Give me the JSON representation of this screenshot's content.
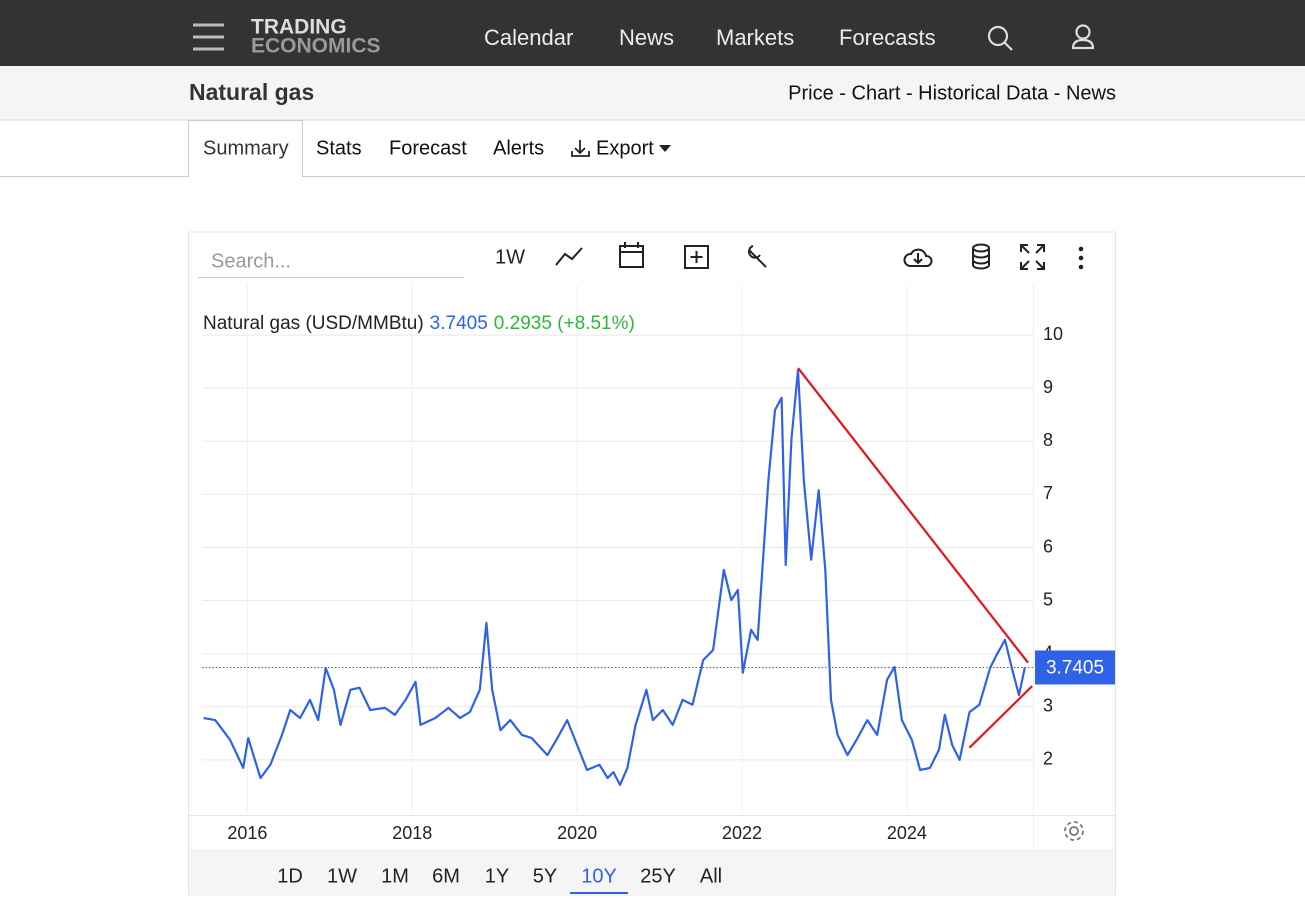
{
  "header": {
    "logo": [
      "TRADING",
      "ECONOMICS"
    ],
    "nav": [
      "Calendar",
      "News",
      "Markets",
      "Forecasts"
    ]
  },
  "subheader": {
    "title": "Natural gas",
    "links": "Price - Chart - Historical Data - News"
  },
  "tabs": [
    "Summary",
    "Stats",
    "Forecast",
    "Alerts",
    "Export"
  ],
  "toolbar": {
    "search_placeholder": "Search...",
    "interval": "1W"
  },
  "chart_data": {
    "type": "line",
    "series": [
      {
        "name": "Natural gas (USD/MMBtu)",
        "color": "#2f62e8",
        "change": "0.2935 (+8.51%)",
        "x": [
          2015.47,
          2015.61,
          2015.79,
          2015.95,
          2016.01,
          2016.16,
          2016.28,
          2016.42,
          2016.52,
          2016.64,
          2016.76,
          2016.86,
          2016.95,
          2017.05,
          2017.13,
          2017.25,
          2017.36,
          2017.49,
          2017.67,
          2017.79,
          2017.92,
          2018.04,
          2018.1,
          2018.28,
          2018.44,
          2018.58,
          2018.7,
          2018.82,
          2018.9,
          2018.97,
          2019.07,
          2019.19,
          2019.33,
          2019.45,
          2019.64,
          2019.75,
          2019.88,
          2020.0,
          2020.12,
          2020.27,
          2020.37,
          2020.44,
          2020.52,
          2020.61,
          2020.71,
          2020.84,
          2020.92,
          2021.04,
          2021.16,
          2021.28,
          2021.4,
          2021.53,
          2021.65,
          2021.78,
          2021.87,
          2021.95,
          2022.01,
          2022.11,
          2022.19,
          2022.32,
          2022.4,
          2022.48,
          2022.53,
          2022.6,
          2022.68,
          2022.75,
          2022.84,
          2022.93,
          2023.01,
          2023.08,
          2023.16,
          2023.28,
          2023.39,
          2023.52,
          2023.64,
          2023.76,
          2023.85,
          2023.94,
          2024.06,
          2024.16,
          2024.28,
          2024.39,
          2024.46,
          2024.55,
          2024.64,
          2024.76,
          2024.88,
          2025.01,
          2025.09,
          2025.19,
          2025.28,
          2025.36,
          2025.43
        ],
        "values": [
          2.79,
          2.75,
          2.38,
          1.85,
          2.41,
          1.66,
          1.91,
          2.47,
          2.94,
          2.79,
          3.13,
          2.75,
          3.73,
          3.32,
          2.66,
          3.32,
          3.36,
          2.94,
          2.98,
          2.85,
          3.13,
          3.47,
          2.66,
          2.79,
          2.98,
          2.79,
          2.9,
          3.32,
          4.58,
          3.32,
          2.56,
          2.75,
          2.47,
          2.41,
          2.09,
          2.38,
          2.75,
          2.28,
          1.81,
          1.91,
          1.66,
          1.77,
          1.53,
          1.85,
          2.66,
          3.32,
          2.75,
          2.94,
          2.66,
          3.13,
          3.04,
          3.88,
          4.07,
          5.58,
          5.01,
          5.2,
          3.64,
          4.45,
          4.26,
          7.27,
          8.59,
          8.82,
          5.67,
          8.03,
          9.34,
          7.27,
          5.77,
          7.08,
          5.58,
          3.13,
          2.47,
          2.09,
          2.38,
          2.75,
          2.47,
          3.51,
          3.75,
          2.75,
          2.38,
          1.81,
          1.85,
          2.19,
          2.85,
          2.28,
          2.0,
          2.9,
          3.04,
          3.73,
          3.98,
          4.26,
          3.69,
          3.22,
          3.7405
        ]
      }
    ],
    "trend_lines": [
      {
        "color": "#e8141c",
        "x": [
          2022.68,
          2025.47
        ],
        "y": [
          9.38,
          3.83
        ]
      },
      {
        "color": "#e8141c",
        "x": [
          2024.76,
          2025.52
        ],
        "y": [
          2.23,
          3.39
        ]
      }
    ],
    "xlim": [
      2015.45,
      2025.53
    ],
    "xticks": [
      2016,
      2018,
      2020,
      2022,
      2024
    ],
    "ylim": [
      1,
      11
    ],
    "yticks": [
      2,
      3,
      4,
      5,
      6,
      7,
      8,
      9,
      10
    ],
    "grid": true
  },
  "range_buttons": {
    "options": [
      "1D",
      "1W",
      "1M",
      "6M",
      "1Y",
      "5Y",
      "10Y",
      "25Y",
      "All"
    ],
    "active": "10Y"
  }
}
